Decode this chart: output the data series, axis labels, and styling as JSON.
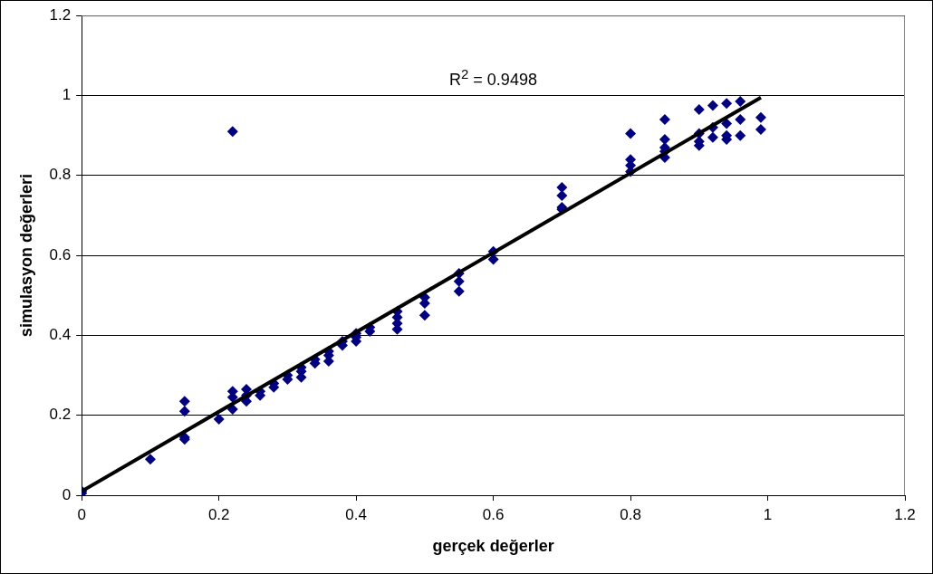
{
  "chart_data": {
    "type": "scatter",
    "xlabel": "gerçek değerler",
    "ylabel": "simulasyon değerleri",
    "xlim": [
      0,
      1.2
    ],
    "xticks": [
      0,
      0.2,
      0.4,
      0.6,
      0.8,
      1,
      1.2
    ],
    "ylim": [
      0,
      1.2
    ],
    "yticks": [
      0,
      0.2,
      0.4,
      0.6,
      0.8,
      1,
      1.2
    ],
    "grid": "y",
    "marker": "diamond",
    "annotations": [
      "R$^{2}$ = 0.9498"
    ],
    "series": [
      {
        "color": "#000080",
        "x": [
          0,
          0,
          0.1,
          0.15,
          0.15,
          0.15,
          0.15,
          0.2,
          0.22,
          0.22,
          0.22,
          0.22,
          0.24,
          0.24,
          0.24,
          0.26,
          0.26,
          0.28,
          0.28,
          0.3,
          0.3,
          0.32,
          0.32,
          0.32,
          0.34,
          0.34,
          0.36,
          0.36,
          0.36,
          0.38,
          0.38,
          0.4,
          0.4,
          0.4,
          0.42,
          0.42,
          0.46,
          0.46,
          0.46,
          0.46,
          0.5,
          0.5,
          0.5,
          0.55,
          0.55,
          0.55,
          0.6,
          0.6,
          0.7,
          0.7,
          0.7,
          0.7,
          0.8,
          0.8,
          0.8,
          0.8,
          0.85,
          0.85,
          0.85,
          0.85,
          0.85,
          0.9,
          0.9,
          0.9,
          0.9,
          0.92,
          0.92,
          0.92,
          0.94,
          0.94,
          0.94,
          0.94,
          0.96,
          0.96,
          0.96,
          0.99,
          0.99
        ],
        "values": [
          0.01,
          0.005,
          0.09,
          0.14,
          0.145,
          0.21,
          0.235,
          0.19,
          0.91,
          0.215,
          0.245,
          0.26,
          0.235,
          0.25,
          0.265,
          0.25,
          0.26,
          0.27,
          0.28,
          0.29,
          0.3,
          0.295,
          0.31,
          0.32,
          0.33,
          0.34,
          0.335,
          0.35,
          0.36,
          0.375,
          0.385,
          0.385,
          0.395,
          0.405,
          0.41,
          0.42,
          0.415,
          0.43,
          0.445,
          0.46,
          0.45,
          0.48,
          0.495,
          0.51,
          0.535,
          0.555,
          0.59,
          0.61,
          0.715,
          0.72,
          0.75,
          0.77,
          0.81,
          0.825,
          0.84,
          0.905,
          0.845,
          0.86,
          0.87,
          0.89,
          0.94,
          0.875,
          0.885,
          0.905,
          0.965,
          0.895,
          0.92,
          0.975,
          0.89,
          0.9,
          0.93,
          0.98,
          0.9,
          0.94,
          0.985,
          0.915,
          0.945
        ]
      },
      {
        "type": "line",
        "color": "#000000",
        "marker": "none",
        "x": [
          0,
          0.99
        ],
        "values": [
          0.01,
          0.995
        ]
      }
    ]
  }
}
